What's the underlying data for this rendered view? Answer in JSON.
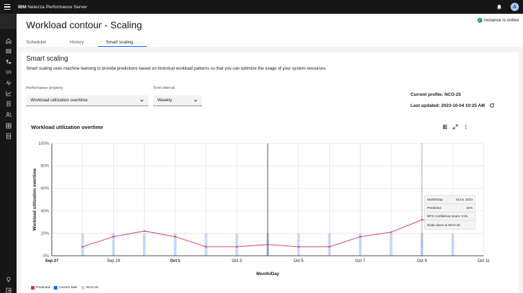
{
  "topbar": {
    "brand": "IBM",
    "product": "Netezza Performance Server",
    "avatar_initial": "A"
  },
  "sidebar": {
    "icons": [
      "home-icon",
      "database-icon",
      "data-structure-icon",
      "code-icon",
      "activity-icon",
      "chart-icon",
      "query-icon",
      "users-icon",
      "catalog-icon",
      "storage-icon",
      "help-icon",
      "logout-icon"
    ]
  },
  "header": {
    "title": "Workload contour - Scaling",
    "status": "Instance is online",
    "tabs": [
      {
        "label": "Scheduler"
      },
      {
        "label": "History"
      },
      {
        "label": "Smart scaling"
      }
    ]
  },
  "smart": {
    "title": "Smart scaling",
    "description": "Smart scaling uses machine learning to provide predictions based on historical workload patterns so that you can optimize the usage of your system resources.",
    "perf_label": "Performance property",
    "perf_value": "Workload utilization overtime",
    "interval_label": "Time interval",
    "interval_value": "Weekly",
    "current_profile": "Current profile: NCO-25",
    "last_updated": "Last updated: 2023-10-04 10:25 AM"
  },
  "chart_title": "Workload utilization overtime",
  "tooltip": {
    "rows": [
      {
        "label": "Month/Day",
        "value": "Oct 9, 2023"
      },
      {
        "label": "Predicted",
        "value": "32%"
      },
      {
        "label": "NPS Confidence score: 0.01",
        "value": ""
      },
      {
        "label": "Scale down to NCO-20",
        "value": ""
      }
    ]
  },
  "colors": {
    "predicted": "#d12771",
    "current_date": "#0f62fe",
    "nco": "#c6d9f5",
    "accent": "#0f62fe",
    "online": "#24a148"
  },
  "chart_data": {
    "type": "line",
    "xlabel": "Month/Day",
    "ylabel": "Workload utilization overtime",
    "ylim": [
      0,
      100
    ],
    "yticks": [
      "0%",
      "20%",
      "40%",
      "60%",
      "80%",
      "100%"
    ],
    "x_range": [
      0,
      14
    ],
    "xticks": [
      {
        "x": 0,
        "label": "Sep 27",
        "bold": true
      },
      {
        "x": 2,
        "label": "Sep 29",
        "bold": false
      },
      {
        "x": 4,
        "label": "Oct 1",
        "bold": true
      },
      {
        "x": 6,
        "label": "Oct 3",
        "bold": false
      },
      {
        "x": 8,
        "label": "Oct 5",
        "bold": false
      },
      {
        "x": 10,
        "label": "Oct 7",
        "bold": false
      },
      {
        "x": 12,
        "label": "Oct 9",
        "bold": false
      },
      {
        "x": 14,
        "label": "Oct 11",
        "bold": false
      }
    ],
    "legend": [
      "Predicted",
      "Current date",
      "NCO-25"
    ],
    "predicted_x": [
      1,
      2,
      3,
      4,
      5,
      6,
      7,
      8,
      9,
      10,
      11,
      12,
      13
    ],
    "predicted_y": [
      8,
      17,
      22,
      17,
      8,
      8,
      10,
      8,
      8,
      17,
      21,
      32,
      29
    ],
    "nco_x": [
      1,
      2,
      3,
      4,
      5,
      6,
      7,
      8,
      9,
      10,
      11,
      12,
      13
    ],
    "nco_y": [
      20,
      20,
      20,
      20,
      20,
      20,
      20,
      20,
      20,
      20,
      20,
      20,
      20
    ],
    "current_date_x": 7,
    "hover_x": 12
  }
}
